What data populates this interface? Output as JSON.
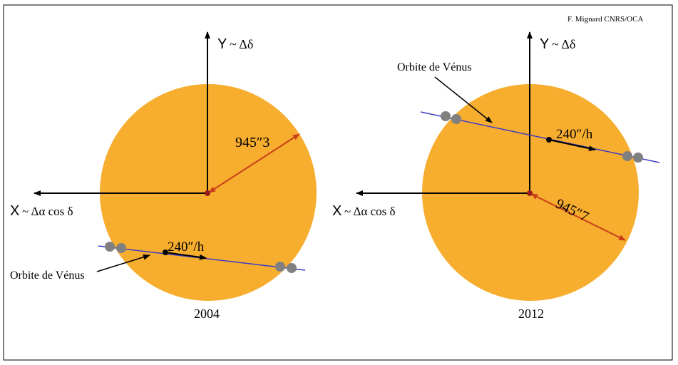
{
  "credit": "F. Mignard  CNRS/OCA",
  "panels": [
    {
      "y_letter": "Y",
      "y_expr": "~ Δδ",
      "x_letter": "X",
      "x_expr": "~ Δα cos δ",
      "radius": "945″3",
      "speed": "240″/h",
      "orbit_label": "Orbite de Vénus",
      "year": "2004"
    },
    {
      "y_letter": "Y",
      "y_expr": "~ Δδ",
      "x_letter": "X",
      "x_expr": "~ Δα cos δ",
      "radius": "945″7",
      "speed": "240″/h",
      "orbit_label": "Orbite de Vénus",
      "year": "2012"
    }
  ]
}
